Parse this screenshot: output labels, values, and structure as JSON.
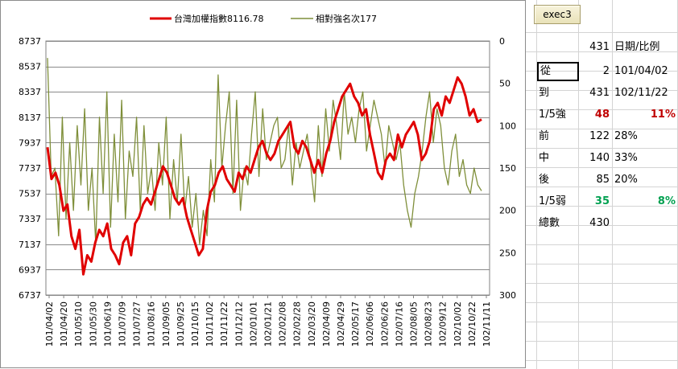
{
  "toolbar": {
    "exec_label": "exec3"
  },
  "summary": {
    "header": {
      "count": "431",
      "label": "日期/比例"
    },
    "rows": [
      {
        "label": "從",
        "count": "2",
        "value": "101/04/02",
        "style": ""
      },
      {
        "label": "到",
        "count": "431",
        "value": "102/11/22",
        "style": ""
      },
      {
        "label": "1/5強",
        "count": "48",
        "value": "11%",
        "style": "red"
      },
      {
        "label": "前",
        "count": "122",
        "value": "28%",
        "style": ""
      },
      {
        "label": "中",
        "count": "140",
        "value": "33%",
        "style": ""
      },
      {
        "label": "後",
        "count": "85",
        "value": "20%",
        "style": ""
      },
      {
        "label": "1/5弱",
        "count": "35",
        "value": "8%",
        "style": "green"
      },
      {
        "label": "總數",
        "count": "430",
        "value": "",
        "style": ""
      }
    ]
  },
  "colors": {
    "index_line": "#e00000",
    "rank_line": "#7f8f3a",
    "highlight_red": "#c00000",
    "highlight_green": "#00a050"
  },
  "chart_data": {
    "type": "line",
    "legend": [
      "台灣加權指數8116.78",
      "相對強名次177"
    ],
    "legend_position": "top",
    "grid": true,
    "y_left": {
      "ylim": [
        6737,
        8737
      ],
      "ticks": [
        "8737",
        "8537",
        "8337",
        "8137",
        "7937",
        "7737",
        "7537",
        "7337",
        "7137",
        "6937",
        "6737"
      ]
    },
    "y_right": {
      "ylim": [
        0,
        300
      ],
      "reversed": true,
      "ticks": [
        "0",
        "50",
        "100",
        "150",
        "200",
        "250",
        "300"
      ]
    },
    "x_ticks": [
      "101/04/02",
      "101/04/20",
      "101/05/10",
      "101/05/30",
      "101/06/19",
      "101/07/09",
      "101/07/27",
      "101/08/16",
      "101/09/05",
      "101/09/25",
      "101/10/15",
      "101/11/02",
      "101/11/22",
      "101/12/12",
      "102/01/01",
      "102/01/21",
      "102/02/08",
      "102/02/28",
      "102/03/20",
      "102/04/09",
      "102/04/29",
      "102/05/17",
      "102/06/06",
      "102/06/26",
      "102/07/16",
      "102/08/05",
      "102/08/23",
      "102/09/12",
      "102/10/02",
      "102/10/22",
      "102/11/11"
    ],
    "series": [
      {
        "name": "台灣加權指數8116.78",
        "axis": "left",
        "values": [
          7900,
          7650,
          7700,
          7600,
          7400,
          7450,
          7200,
          7100,
          7250,
          6900,
          7050,
          7000,
          7150,
          7250,
          7200,
          7300,
          7100,
          7050,
          6980,
          7150,
          7200,
          7050,
          7300,
          7350,
          7450,
          7500,
          7450,
          7550,
          7650,
          7750,
          7700,
          7600,
          7500,
          7450,
          7500,
          7350,
          7250,
          7150,
          7050,
          7100,
          7400,
          7550,
          7600,
          7700,
          7750,
          7650,
          7600,
          7550,
          7700,
          7650,
          7750,
          7700,
          7800,
          7900,
          7950,
          7850,
          7800,
          7850,
          7950,
          8000,
          8050,
          8100,
          7900,
          7850,
          7950,
          7900,
          7800,
          7700,
          7800,
          7700,
          7850,
          7950,
          8100,
          8200,
          8300,
          8350,
          8400,
          8300,
          8250,
          8150,
          8200,
          8000,
          7850,
          7700,
          7650,
          7800,
          7850,
          7800,
          8000,
          7900,
          8000,
          8050,
          8100,
          8000,
          7800,
          7850,
          7950,
          8200,
          8250,
          8150,
          8300,
          8250,
          8350,
          8450,
          8400,
          8300,
          8150,
          8200,
          8100,
          8120
        ]
      },
      {
        "name": "相對強名次177",
        "axis": "right",
        "values": [
          20,
          160,
          150,
          230,
          90,
          210,
          120,
          200,
          100,
          170,
          80,
          200,
          150,
          240,
          90,
          180,
          60,
          220,
          110,
          190,
          70,
          210,
          130,
          160,
          90,
          200,
          100,
          180,
          150,
          200,
          120,
          170,
          90,
          210,
          140,
          190,
          110,
          200,
          160,
          220,
          180,
          240,
          200,
          230,
          140,
          190,
          40,
          150,
          100,
          60,
          180,
          70,
          200,
          150,
          170,
          110,
          60,
          160,
          80,
          140,
          120,
          100,
          90,
          150,
          140,
          100,
          170,
          120,
          150,
          130,
          110,
          150,
          190,
          100,
          160,
          80,
          130,
          70,
          100,
          140,
          60,
          110,
          90,
          120,
          80,
          60,
          130,
          100,
          70,
          90,
          110,
          150,
          100,
          120,
          140,
          120,
          170,
          200,
          220,
          180,
          160,
          130,
          90,
          60,
          120,
          80,
          100,
          150,
          170,
          130,
          110,
          160,
          140,
          170,
          180,
          150,
          170,
          177
        ]
      }
    ]
  }
}
